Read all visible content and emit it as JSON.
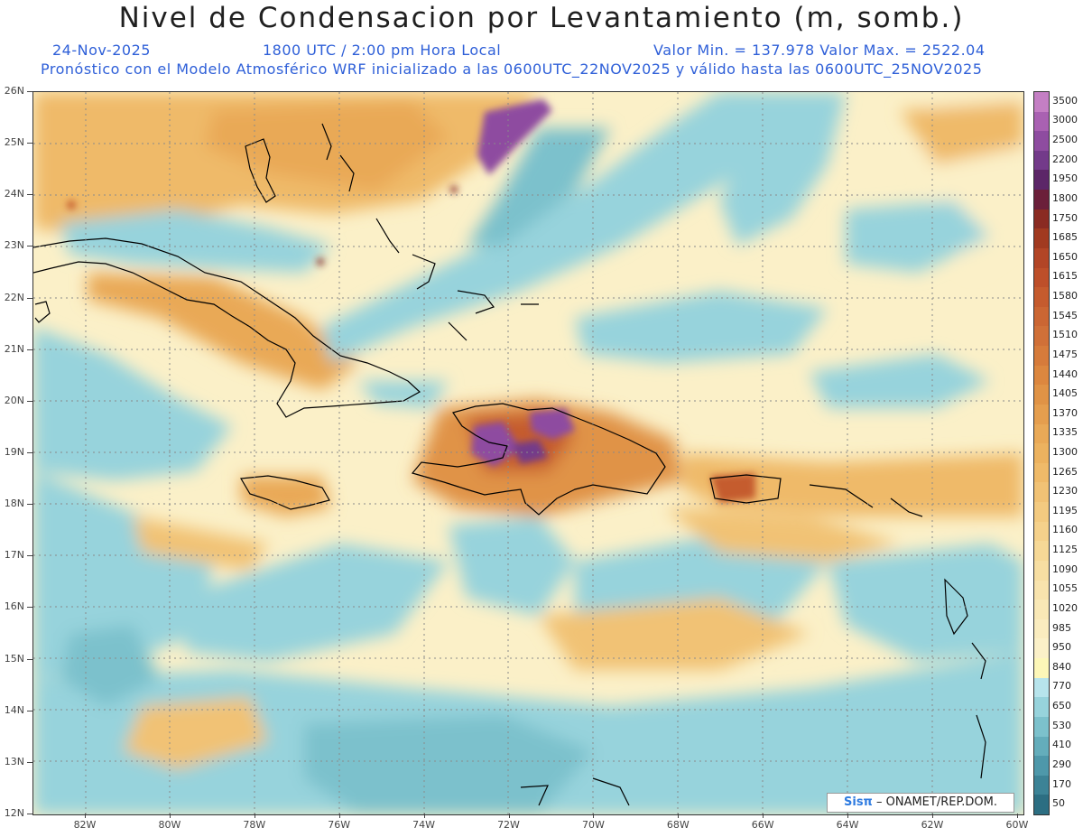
{
  "title": "Nivel de Condensacion por Levantamiento (m, somb.)",
  "header": {
    "date": "24-Nov-2025",
    "time": "1800 UTC / 2:00 pm Hora Local",
    "minmax": "Valor Min. = 137.978   Valor Max. = 2522.04",
    "forecast": "Pronóstico con el Modelo Atmosférico WRF inicializado a las 0600UTC_22NOV2025 y válido hasta las  0600UTC_25NOV2025"
  },
  "map": {
    "region": "Caribbean / Greater Antilles",
    "lat_labels": [
      "26N",
      "25N",
      "24N",
      "23N",
      "22N",
      "21N",
      "20N",
      "19N",
      "18N",
      "17N",
      "16N",
      "15N",
      "14N",
      "13N",
      "12N"
    ],
    "lon_labels": [
      "82W",
      "80W",
      "78W",
      "76W",
      "74W",
      "72W",
      "70W",
      "68W",
      "66W",
      "64W",
      "62W",
      "60W"
    ]
  },
  "colorbar": {
    "levels": [
      "3500",
      "3000",
      "2500",
      "2200",
      "1950",
      "1800",
      "1750",
      "1685",
      "1650",
      "1615",
      "1580",
      "1545",
      "1510",
      "1475",
      "1440",
      "1405",
      "1370",
      "1335",
      "1300",
      "1265",
      "1230",
      "1195",
      "1160",
      "1125",
      "1090",
      "1055",
      "1020",
      "985",
      "950",
      "840",
      "770",
      "650",
      "530",
      "410",
      "290",
      "170",
      "50"
    ],
    "colors": [
      "#c47fc4",
      "#a961b2",
      "#8e4ca0",
      "#733a8a",
      "#5c2668",
      "#6b1f3a",
      "#8a2b22",
      "#a13a20",
      "#b24526",
      "#bd4f2a",
      "#c55b2e",
      "#cb6633",
      "#d07038",
      "#d67b3b",
      "#dc873f",
      "#e09346",
      "#e59e4e",
      "#e9a957",
      "#ecb25f",
      "#efba69",
      "#f1c275",
      "#f3ca80",
      "#f5d18b",
      "#f6d896",
      "#f7dea2",
      "#f8e3ad",
      "#f9e8b6",
      "#faecbf",
      "#fbf0c8",
      "#fdf7b8",
      "#b7e4ec",
      "#97d3dc",
      "#7cc1cc",
      "#64adbb",
      "#4e98aa",
      "#3c8396",
      "#2c6e82"
    ]
  },
  "credit": {
    "logo": "Sisπ",
    "text": " – ONAMET/REP.DOM."
  }
}
